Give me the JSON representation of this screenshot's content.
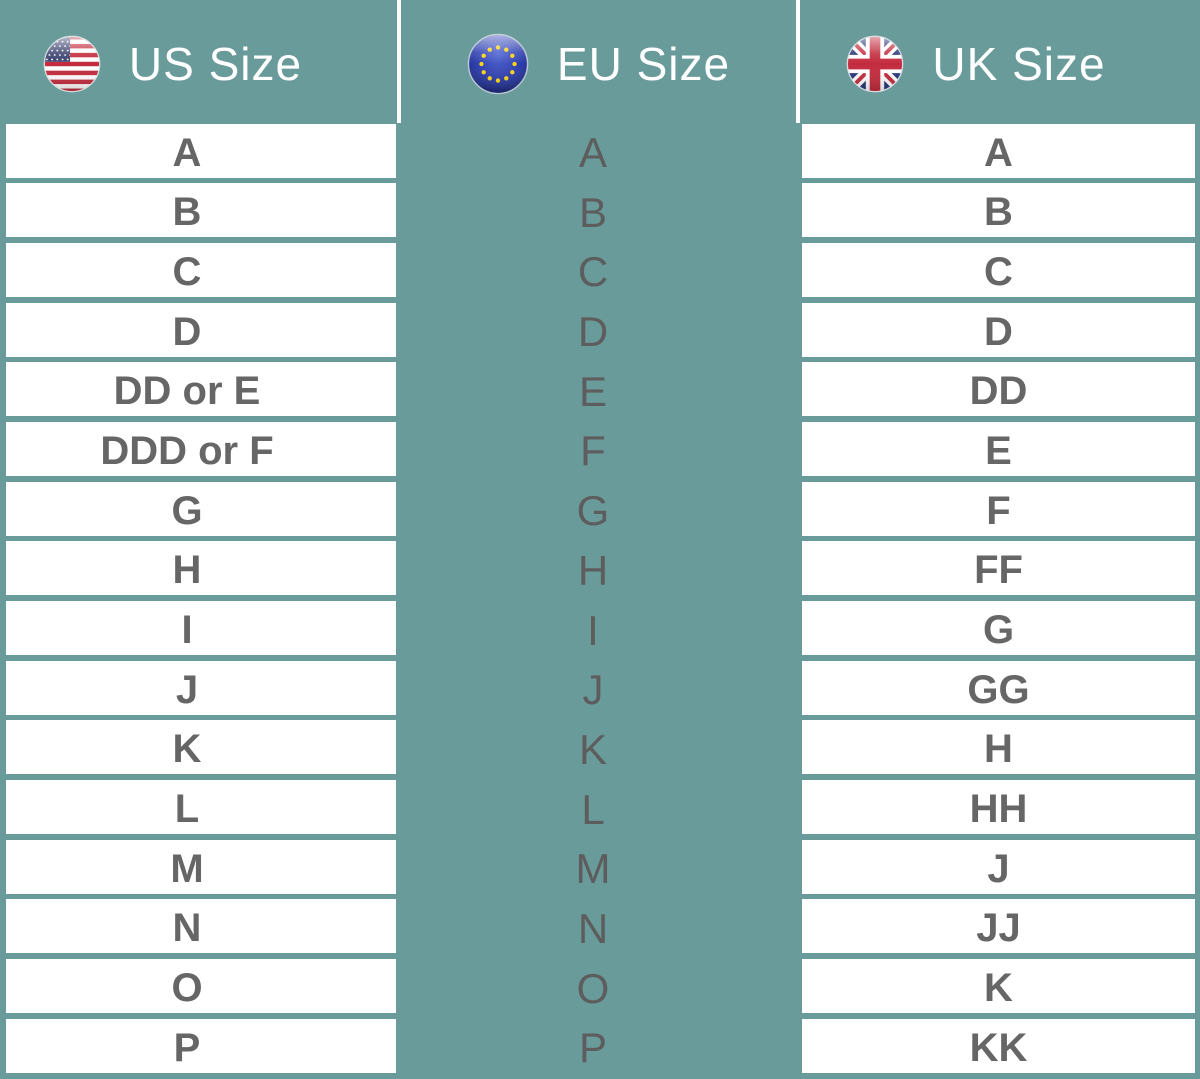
{
  "header": {
    "columns": [
      {
        "id": "us",
        "label": "US Size",
        "icon": "us-flag-icon"
      },
      {
        "id": "eu",
        "label": "EU Size",
        "icon": "eu-flag-icon"
      },
      {
        "id": "uk",
        "label": "UK Size",
        "icon": "uk-flag-icon"
      }
    ]
  },
  "chart_data": {
    "type": "table",
    "columns": [
      "US Size",
      "EU Size",
      "UK Size"
    ],
    "series": [
      {
        "name": "US Size",
        "values": [
          "A",
          "B",
          "C",
          "D",
          "DD or E",
          "DDD or F",
          "G",
          "H",
          "I",
          "J",
          "K",
          "L",
          "M",
          "N",
          "O",
          "P"
        ]
      },
      {
        "name": "EU Size",
        "values": [
          "A",
          "B",
          "C",
          "D",
          "E",
          "F",
          "G",
          "H",
          "I",
          "J",
          "K",
          "L",
          "M",
          "N",
          "O",
          "P"
        ]
      },
      {
        "name": "UK Size",
        "values": [
          "A",
          "B",
          "C",
          "D",
          "DD",
          "E",
          "F",
          "FF",
          "G",
          "GG",
          "H",
          "HH",
          "J",
          "JJ",
          "K",
          "KK"
        ]
      }
    ],
    "layout_hints": {
      "rows": 16,
      "grid": "horizontal white bars in US and UK columns, plain background in EU column"
    }
  },
  "colors": {
    "background": "#6a9b9b",
    "row_bar": "#ffffff",
    "row_text": "#666666",
    "eu_text": "#5d5d5d",
    "header_text": "#ffffff",
    "divider": "#ffffff",
    "flag_red": "#c32b3d",
    "flag_blue_us": "#39406e",
    "flag_blue_eu": "#2b3ba8",
    "flag_blue_uk": "#28357d",
    "flag_star_yellow": "#ffd517"
  }
}
